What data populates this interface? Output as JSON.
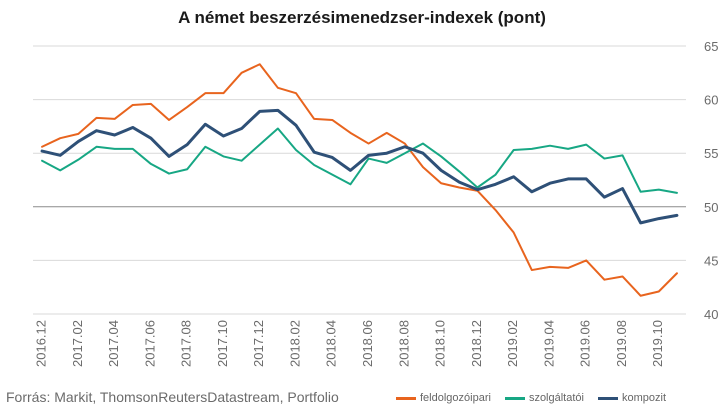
{
  "title": "A német beszerzésimenedzser-indexek (pont)",
  "source": "Forrás: Markit, ThomsonReutersDatastream, Portfolio",
  "colors": {
    "feldolgozoipari": "#e8641e",
    "szolgaltatoi": "#17a784",
    "kompozit": "#2e5077",
    "grid": "#d9d9d9",
    "refline": "#8c8c8c"
  },
  "chart_data": {
    "type": "line",
    "title": "A német beszerzésimenedzser-indexek (pont)",
    "xlabel": "",
    "ylabel": "",
    "ylim": [
      40,
      65
    ],
    "yticks": [
      "40",
      "45",
      "50",
      "55",
      "60",
      "65"
    ],
    "ytick_values": [
      40,
      45,
      50,
      55,
      60,
      65
    ],
    "y_axis_side": "right",
    "reference_line": 50,
    "grid": true,
    "legend_position": "bottom-right",
    "x": [
      "2016.12",
      "2017.01",
      "2017.02",
      "2017.03",
      "2017.04",
      "2017.05",
      "2017.06",
      "2017.07",
      "2017.08",
      "2017.09",
      "2017.10",
      "2017.11",
      "2017.12",
      "2018.01",
      "2018.02",
      "2018.03",
      "2018.04",
      "2018.05",
      "2018.06",
      "2018.07",
      "2018.08",
      "2018.09",
      "2018.10",
      "2018.11",
      "2018.12",
      "2019.01",
      "2019.02",
      "2019.03",
      "2019.04",
      "2019.05",
      "2019.06",
      "2019.07",
      "2019.08",
      "2019.09",
      "2019.10",
      "2019.11"
    ],
    "x_tick_labels": [
      "2016.12",
      "2017.02",
      "2017.04",
      "2017.06",
      "2017.08",
      "2017.10",
      "2017.12",
      "2018.02",
      "2018.04",
      "2018.06",
      "2018.08",
      "2018.10",
      "2018.12",
      "2019.02",
      "2019.04",
      "2019.06",
      "2019.08",
      "2019.10"
    ],
    "series": [
      {
        "name": "feldolgozóipari",
        "color": "#e8641e",
        "values": [
          55.6,
          56.4,
          56.8,
          58.3,
          58.2,
          59.5,
          59.6,
          58.1,
          59.3,
          60.6,
          60.6,
          62.5,
          63.3,
          61.1,
          60.6,
          58.2,
          58.1,
          56.9,
          55.9,
          56.9,
          55.9,
          53.7,
          52.2,
          51.8,
          51.5,
          49.7,
          47.6,
          44.1,
          44.4,
          44.3,
          45.0,
          43.2,
          43.5,
          41.7,
          42.1,
          43.8
        ]
      },
      {
        "name": "szolgáltatói",
        "color": "#17a784",
        "values": [
          54.3,
          53.4,
          54.4,
          55.6,
          55.4,
          55.4,
          54.0,
          53.1,
          53.5,
          55.6,
          54.7,
          54.3,
          55.8,
          57.3,
          55.3,
          53.9,
          53.0,
          52.1,
          54.5,
          54.1,
          55.0,
          55.9,
          54.7,
          53.3,
          51.8,
          53.0,
          55.3,
          55.4,
          55.7,
          55.4,
          55.8,
          54.5,
          54.8,
          51.4,
          51.6,
          51.3
        ]
      },
      {
        "name": "kompozit",
        "color": "#2e5077",
        "values": [
          55.2,
          54.8,
          56.1,
          57.1,
          56.7,
          57.4,
          56.4,
          54.7,
          55.8,
          57.7,
          56.6,
          57.3,
          58.9,
          59.0,
          57.6,
          55.1,
          54.6,
          53.4,
          54.8,
          55.0,
          55.6,
          55.0,
          53.4,
          52.3,
          51.6,
          52.1,
          52.8,
          51.4,
          52.2,
          52.6,
          52.6,
          50.9,
          51.7,
          48.5,
          48.9,
          49.2
        ]
      }
    ]
  }
}
